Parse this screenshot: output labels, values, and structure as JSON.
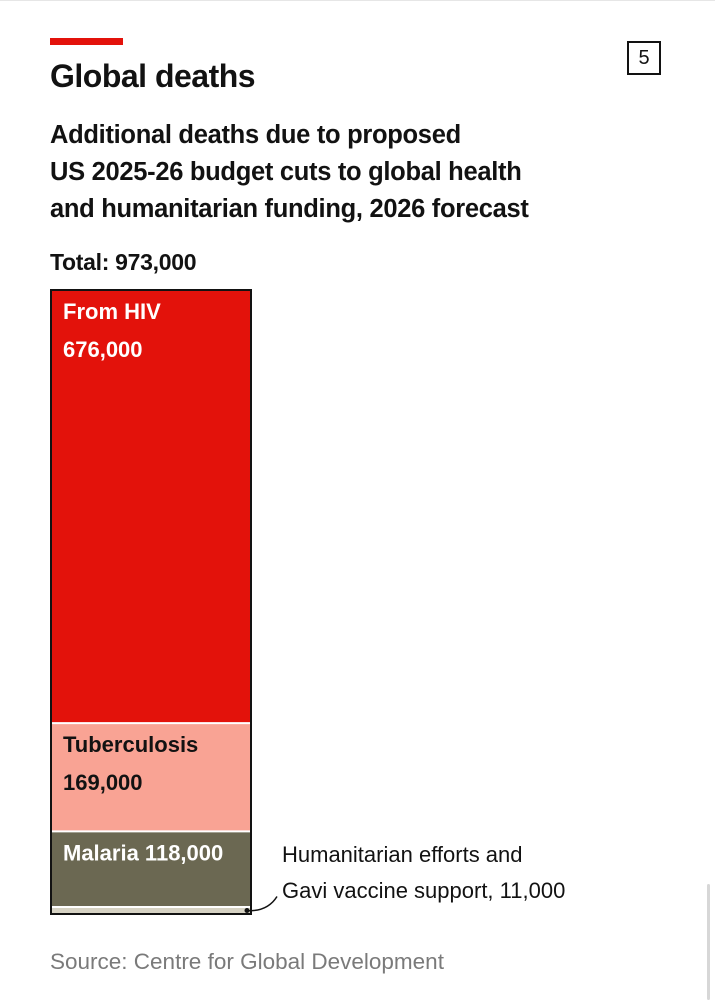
{
  "header": {
    "title": "Global deaths",
    "badge": "5",
    "subtitle_lines": [
      "Additional deaths due to proposed",
      "US 2025-26 budget cuts to global health",
      "and humanitarian funding, 2026 forecast"
    ],
    "total_label": "Total: 973,000"
  },
  "chart_data": {
    "type": "bar",
    "stacked": true,
    "title": "Global deaths",
    "subtitle": "Additional deaths due to proposed US 2025-26 budget cuts to global health and humanitarian funding, 2026 forecast",
    "total": 973000,
    "segments": [
      {
        "name": "From HIV",
        "value": 676000,
        "label_value": "676,000",
        "color": "#e3120b",
        "text_color": "#ffffff",
        "label_style": "two-line"
      },
      {
        "name": "Tuberculosis",
        "value": 169000,
        "label_value": "169,000",
        "color": "#f9a394",
        "text_color": "#121212",
        "label_style": "two-line"
      },
      {
        "name": "Malaria",
        "value": 118000,
        "label_value": "118,000",
        "color": "#6b6852",
        "text_color": "#ffffff",
        "label_style": "one-line"
      },
      {
        "name": "Humanitarian efforts and Gavi vaccine support",
        "value": 11000,
        "label_value": "11,000",
        "color": "#d6d2c3",
        "text_color": "#121212",
        "label_style": "callout",
        "callout_lines": [
          "Humanitarian efforts and",
          "Gavi vaccine support, 11,000"
        ]
      }
    ]
  },
  "footer": {
    "source": "Source: Centre for Global Development"
  }
}
